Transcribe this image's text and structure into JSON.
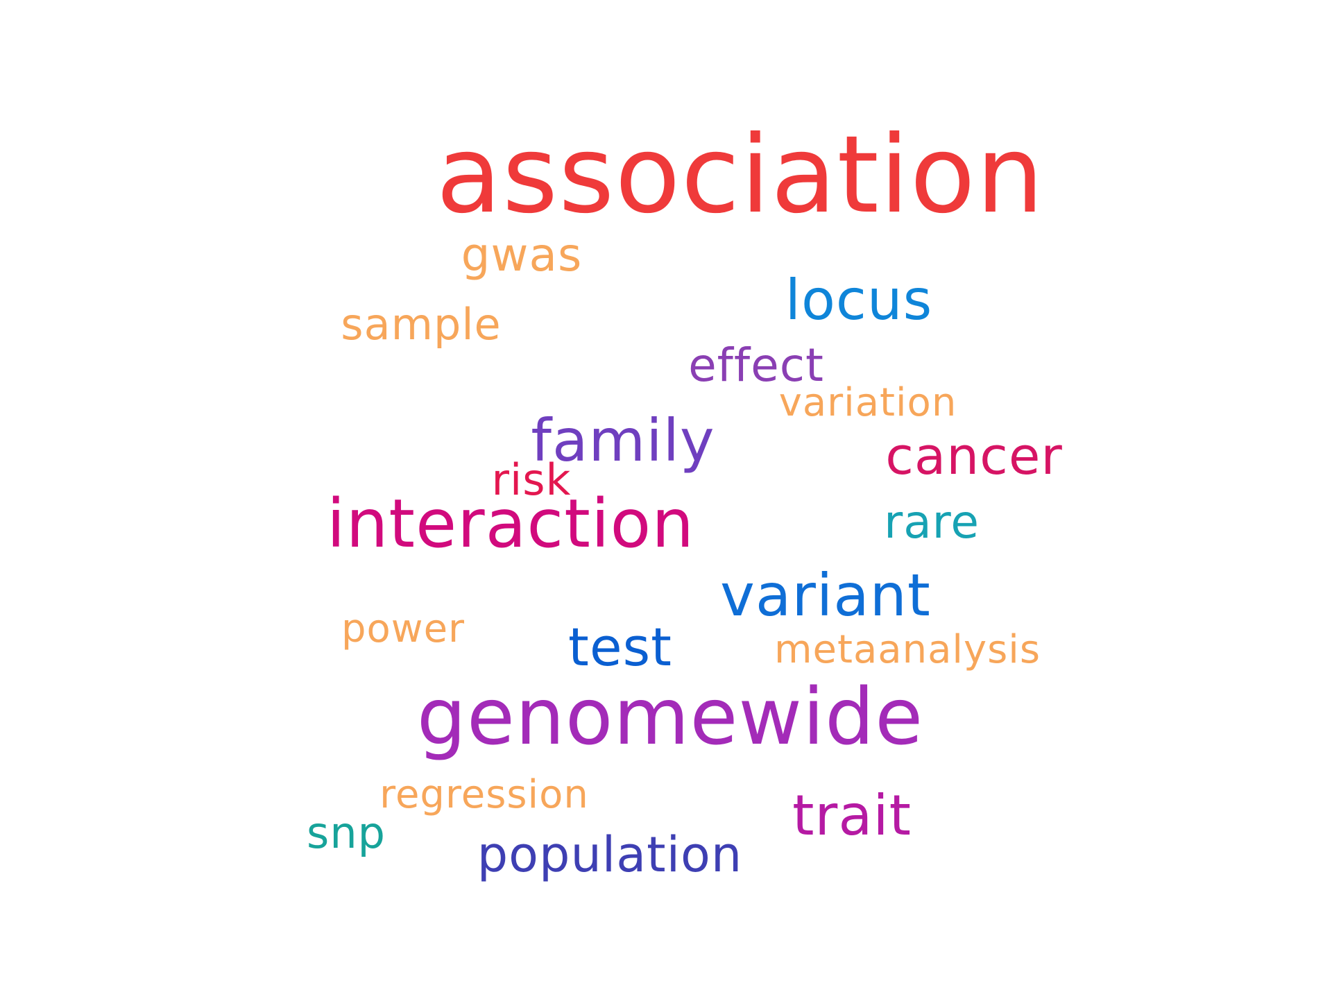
{
  "words": [
    {
      "text": "association",
      "color": "#ef3a3a"
    },
    {
      "text": "gwas",
      "color": "#f7a65a"
    },
    {
      "text": "locus",
      "color": "#0f85d9"
    },
    {
      "text": "sample",
      "color": "#f7a65a"
    },
    {
      "text": "effect",
      "color": "#8a3fb3"
    },
    {
      "text": "variation",
      "color": "#f7a65a"
    },
    {
      "text": "family",
      "color": "#6f3fbf"
    },
    {
      "text": "cancer",
      "color": "#d61464"
    },
    {
      "text": "risk",
      "color": "#e3174f"
    },
    {
      "text": "interaction",
      "color": "#d10a7d"
    },
    {
      "text": "rare",
      "color": "#17a2b3"
    },
    {
      "text": "variant",
      "color": "#0f6ed6"
    },
    {
      "text": "power",
      "color": "#f7a65a"
    },
    {
      "text": "test",
      "color": "#0a5fd1"
    },
    {
      "text": "metaanalysis",
      "color": "#f7a65a"
    },
    {
      "text": "genomewide",
      "color": "#a32bb8"
    },
    {
      "text": "regression",
      "color": "#f7a65a"
    },
    {
      "text": "trait",
      "color": "#b51aa3"
    },
    {
      "text": "snp",
      "color": "#17a39a"
    },
    {
      "text": "population",
      "color": "#3e3fb3"
    }
  ]
}
